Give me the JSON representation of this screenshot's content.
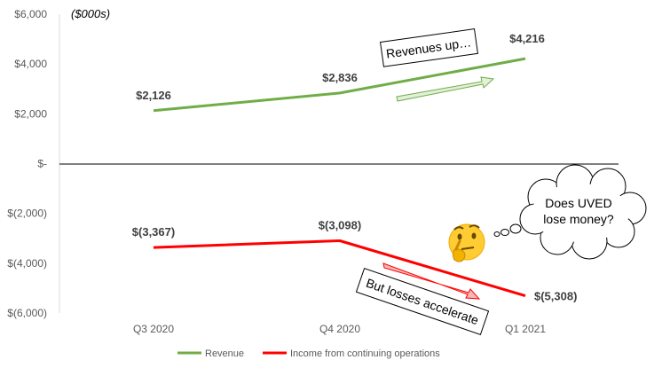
{
  "chart_data": {
    "type": "line",
    "title": "",
    "unit_label": "($000s)",
    "categories": [
      "Q3 2020",
      "Q4 2020",
      "Q1 2021"
    ],
    "ylim": [
      -6000,
      6000
    ],
    "yticks": [
      6000,
      4000,
      2000,
      0,
      -2000,
      -4000,
      -6000
    ],
    "ytick_labels": [
      "$6,000",
      "$4,000",
      "$2,000",
      "$-",
      "$(2,000)",
      "$(4,000)",
      "$(6,000)"
    ],
    "grid": false,
    "legend_position": "bottom",
    "series": [
      {
        "name": "Revenue",
        "color": "#70AD47",
        "values": [
          2126,
          2836,
          4216
        ],
        "data_labels": [
          "$2,126",
          "$2,836",
          "$4,216"
        ]
      },
      {
        "name": "Income from continuing operations",
        "color": "#FF0000",
        "values": [
          -3367,
          -3098,
          -5308
        ],
        "data_labels": [
          "$(3,367)",
          "$(3,098)",
          "$(5,308)"
        ]
      }
    ],
    "annotations": {
      "revenue_callout": "Revenues up…",
      "losses_callout": "But losses accelerate",
      "cloud_line1": "Does UVED",
      "cloud_line2": "lose money?",
      "emoji_icon": "thinking-face-icon"
    }
  }
}
